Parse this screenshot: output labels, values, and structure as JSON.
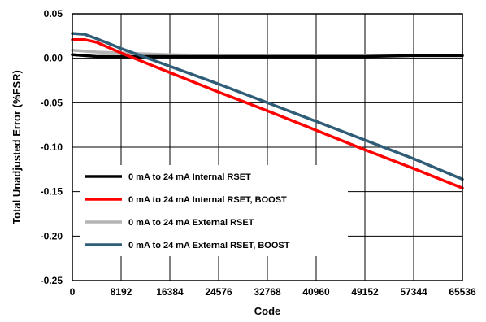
{
  "chart_data": {
    "type": "line",
    "title": "",
    "xlabel": "Code",
    "ylabel": "Total Unadjusted Error (%FSR)",
    "xlim": [
      0,
      65536
    ],
    "ylim": [
      -0.25,
      0.05
    ],
    "x_ticks": [
      0,
      8192,
      16384,
      24576,
      32768,
      40960,
      49152,
      57344,
      65536
    ],
    "x_tick_labels": [
      "0",
      "8192",
      "16384",
      "24576",
      "32768",
      "40960",
      "49152",
      "57344",
      "65536"
    ],
    "y_ticks": [
      0.05,
      0.0,
      -0.05,
      -0.1,
      -0.15,
      -0.2,
      -0.25
    ],
    "y_tick_labels": [
      "0.05",
      "0.00",
      "-0.05",
      "-0.10",
      "-0.15",
      "-0.20",
      "-0.25"
    ],
    "grid": true,
    "legend_position": "bottom-left",
    "series": [
      {
        "name": "0 mA to 24 mA Internal RSET",
        "color": "#000000",
        "x": [
          0,
          4096,
          8192,
          16384,
          24576,
          32768,
          40960,
          49152,
          57344,
          65536
        ],
        "y": [
          0.004,
          0.002,
          0.002,
          0.002,
          0.002,
          0.002,
          0.002,
          0.002,
          0.003,
          0.003
        ]
      },
      {
        "name": "0 mA to 24 mA Internal RSET, BOOST",
        "color": "#ff0000",
        "x": [
          0,
          2048,
          4096,
          8192,
          16384,
          24576,
          32768,
          40960,
          49152,
          57344,
          65536
        ],
        "y": [
          0.021,
          0.021,
          0.018,
          0.006,
          -0.016,
          -0.038,
          -0.059,
          -0.081,
          -0.103,
          -0.124,
          -0.146
        ]
      },
      {
        "name": "0 mA to 24 mA External RSET",
        "color": "#b4b4b4",
        "x": [
          0,
          4096,
          8192,
          16384,
          24576,
          32768,
          40960,
          49152,
          57344,
          65536
        ],
        "y": [
          0.009,
          0.007,
          0.006,
          0.004,
          0.003,
          0.003,
          0.003,
          0.003,
          0.003,
          0.003
        ]
      },
      {
        "name": "0 mA to 24 mA External RSET, BOOST",
        "color": "#2f5d77",
        "x": [
          0,
          2048,
          4096,
          8192,
          16384,
          24576,
          32768,
          40960,
          49152,
          57344,
          65536
        ],
        "y": [
          0.028,
          0.027,
          0.022,
          0.011,
          -0.009,
          -0.029,
          -0.05,
          -0.071,
          -0.092,
          -0.113,
          -0.136
        ]
      }
    ]
  }
}
